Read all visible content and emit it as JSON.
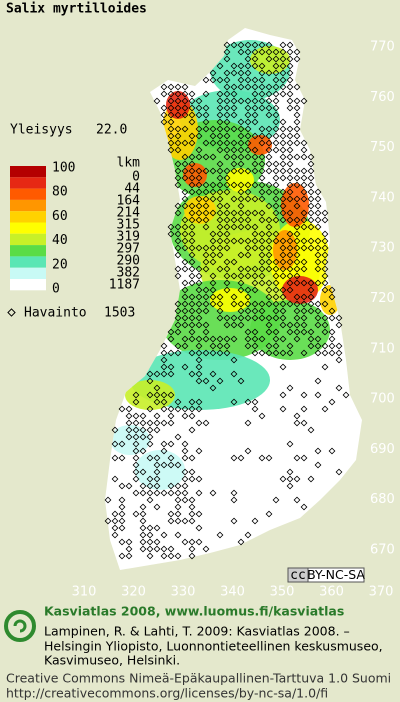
{
  "title": "Salix myrtilloides",
  "frequency": {
    "label": "Yleisyys",
    "value": "22.0"
  },
  "legend": {
    "count_header": "lkm",
    "scale_labels": [
      100,
      80,
      60,
      40,
      20,
      0
    ],
    "rows": [
      {
        "color": "#b40000",
        "count": 0
      },
      {
        "color": "#e62814",
        "count": 44
      },
      {
        "color": "#ff5a00",
        "count": 164
      },
      {
        "color": "#ff9600",
        "count": 214
      },
      {
        "color": "#ffd200",
        "count": 315
      },
      {
        "color": "#ffff00",
        "count": 319
      },
      {
        "color": "#c8f028",
        "count": 297
      },
      {
        "color": "#5adc46",
        "count": 290
      },
      {
        "color": "#5ae6b4",
        "count": 382
      },
      {
        "color": "#c8faf5",
        "count": 1187
      },
      {
        "color": "#ffffff",
        "count": null
      }
    ]
  },
  "observations": {
    "label": "Havainto",
    "count": 1503
  },
  "grid": {
    "y_labels": [
      770,
      760,
      750,
      740,
      730,
      720,
      710,
      700,
      690,
      680,
      670
    ],
    "x_labels": [
      310,
      320,
      330,
      340,
      350,
      360,
      370
    ]
  },
  "license_badge": {
    "icon": "cc",
    "text": "BY-NC-SA"
  },
  "footer": {
    "heading": "Kasviatlas 2008, www.luomus.fi/kasviatlas",
    "citation": [
      "Lampinen, R. & Lahti, T. 2009: Kasviatlas 2008. –",
      "Helsingin Yliopisto, Luonnontieteellinen keskusmuseo,",
      "Kasvimuseo, Helsinki."
    ],
    "license": [
      "Creative Commons Nimeä-Epäkaupallinen-Tarttuva 1.0 Suomi",
      "http://creativecommons.org/licenses/by-nc-sa/1.0/fi"
    ]
  }
}
